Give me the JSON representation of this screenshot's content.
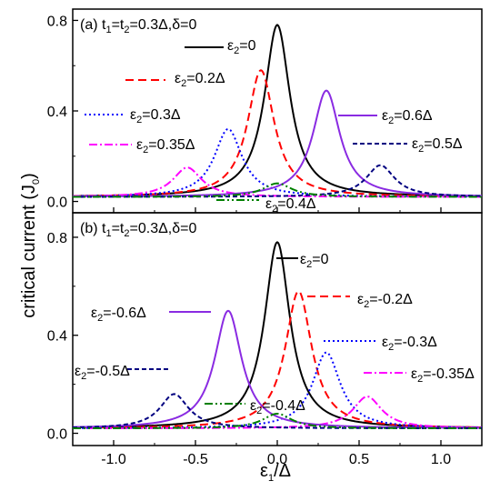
{
  "chart_data": [
    {
      "type": "line",
      "panel_label": "(a) t",
      "title_parts": [
        "(a) t",
        "1",
        "=t",
        "2",
        "=0.3Δ,δ=0"
      ],
      "ylim": [
        -0.05,
        0.85
      ],
      "xlim": [
        -1.25,
        1.25
      ],
      "yticks": [
        0.0,
        0.4,
        0.8
      ],
      "ytick_labels": [
        "0.0",
        "0.4",
        "0.8"
      ],
      "series": [
        {
          "name": "ε2=0",
          "label_parts": [
            "ε",
            "2",
            "=0"
          ],
          "color": "#000000",
          "dash": "solid",
          "peak_x": 0.0,
          "peak_y": 0.78
        },
        {
          "name": "ε2=0.2Δ",
          "label_parts": [
            "ε",
            "2",
            "=0.2Δ"
          ],
          "color": "#ff0000",
          "dash": "dashed",
          "peak_x": -0.1,
          "peak_y": 0.58
        },
        {
          "name": "ε2=0.3Δ",
          "label_parts": [
            "ε",
            "2",
            "=0.3Δ"
          ],
          "color": "#0000ff",
          "dash": "dotted",
          "peak_x": -0.3,
          "peak_y": 0.32
        },
        {
          "name": "ε2=0.35Δ",
          "label_parts": [
            "ε",
            "2",
            "=0.35Δ"
          ],
          "color": "#ff00ff",
          "dash": "dashdot",
          "peak_x": -0.55,
          "peak_y": 0.15
        },
        {
          "name": "ε2=0.6Δ",
          "label_parts": [
            "ε",
            "2",
            "=0.6Δ"
          ],
          "color": "#8a2be2",
          "dash": "solid",
          "peak_x": 0.3,
          "peak_y": 0.49
        },
        {
          "name": "ε2=0.5Δ",
          "label_parts": [
            "ε",
            "2",
            "=0.5Δ"
          ],
          "color": "#000080",
          "dash": "shortdash",
          "peak_x": 0.63,
          "peak_y": 0.16
        },
        {
          "name": "ε2=0.4Δ",
          "label_parts": [
            "ε",
            "2",
            "=0.4Δ"
          ],
          "color": "#008000",
          "dash": "dashdotdot",
          "peak_x": 0.0,
          "peak_y": 0.08
        }
      ]
    },
    {
      "type": "line",
      "panel_label": "(b) t",
      "title_parts": [
        "(b) t",
        "1",
        "=t",
        "2",
        "=0.3Δ,δ=0"
      ],
      "ylim": [
        -0.05,
        0.9
      ],
      "xlim": [
        -1.25,
        1.25
      ],
      "yticks": [
        0.0,
        0.4,
        0.8
      ],
      "ytick_labels": [
        "0.0",
        "0.4",
        "0.8"
      ],
      "xticks": [
        -1.0,
        -0.5,
        0.0,
        0.5,
        1.0
      ],
      "xtick_labels": [
        "-1.0",
        "-0.5",
        "0.0",
        "0.5",
        "1.0"
      ],
      "series": [
        {
          "name": "ε2=0",
          "label_parts": [
            "ε",
            "2",
            "=0"
          ],
          "color": "#000000",
          "dash": "solid",
          "peak_x": 0.0,
          "peak_y": 0.78
        },
        {
          "name": "ε2=-0.2Δ",
          "label_parts": [
            "ε",
            "2",
            "=-0.2Δ"
          ],
          "color": "#ff0000",
          "dash": "dashed",
          "peak_x": 0.13,
          "peak_y": 0.58
        },
        {
          "name": "ε2=-0.3Δ",
          "label_parts": [
            "ε",
            "2",
            "=-0.3Δ"
          ],
          "color": "#0000ff",
          "dash": "dotted",
          "peak_x": 0.3,
          "peak_y": 0.33
        },
        {
          "name": "ε2=-0.35Δ",
          "label_parts": [
            "ε",
            "2",
            "=-0.35Δ"
          ],
          "color": "#ff00ff",
          "dash": "dashdot",
          "peak_x": 0.55,
          "peak_y": 0.15
        },
        {
          "name": "ε2=-0.6Δ",
          "label_parts": [
            "ε",
            "2",
            "=-0.6Δ"
          ],
          "color": "#8a2be2",
          "dash": "solid",
          "peak_x": -0.3,
          "peak_y": 0.5
        },
        {
          "name": "ε2=-0.5Δ",
          "label_parts": [
            "ε",
            "2",
            "=-0.5Δ"
          ],
          "color": "#000080",
          "dash": "shortdash",
          "peak_x": -0.63,
          "peak_y": 0.16
        },
        {
          "name": "ε2=-0.4Δ",
          "label_parts": [
            "ε",
            "2",
            "=-0.4Δ"
          ],
          "color": "#008000",
          "dash": "dashdotdot",
          "peak_x": 0.0,
          "peak_y": 0.08
        }
      ]
    }
  ],
  "ylabel_parts": [
    "critical current (J",
    "0",
    ")"
  ],
  "xlabel_parts": [
    "ε",
    "1",
    "/Δ"
  ]
}
